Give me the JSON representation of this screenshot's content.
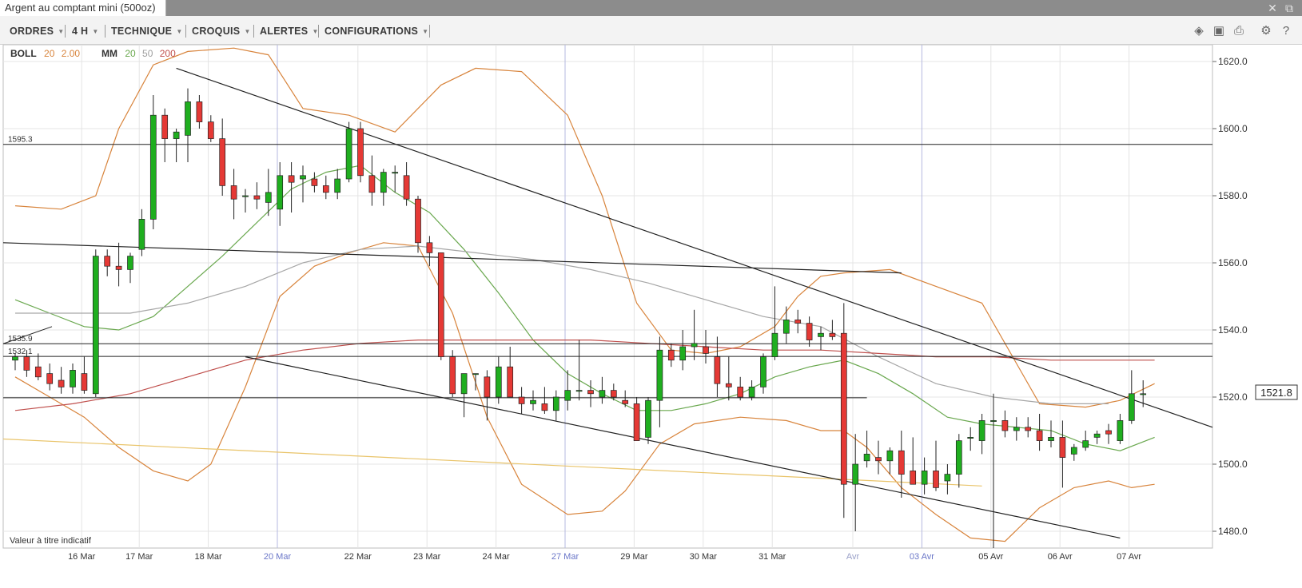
{
  "window": {
    "tab_title": "Argent au comptant mini (500oz)"
  },
  "toolbar": {
    "menus": [
      "ORDRES",
      "4 H",
      "TECHNIQUE",
      "CROQUIS",
      "ALERTES",
      "CONFIGURATIONS"
    ],
    "right_icons": [
      "layers-icon",
      "image-icon",
      "print-icon",
      "gear-icon",
      "help-icon"
    ]
  },
  "indicators": {
    "boll": {
      "label": "BOLL",
      "p1": "20",
      "p2": "2.00"
    },
    "mm": {
      "label": "MM",
      "p1": "20",
      "p2": "50",
      "p3": "200"
    }
  },
  "footer_note": "Valeur à titre indicatif",
  "colors": {
    "up": "#1fae1f",
    "down": "#e53935",
    "bollinger": "#d8843c",
    "mm20": "#6aa84f",
    "mm50": "#a6a6a6",
    "mm200": "#c0504d",
    "trendline": "#222222",
    "long_ma": "#e9c46a",
    "grid": "#e4e4e4",
    "day_separator": "#b4b8e0"
  },
  "chart_data": {
    "type": "candlestick",
    "timeframe": "4 H",
    "ylim": [
      1475,
      1625
    ],
    "y_ticks": [
      1480.0,
      1500.0,
      1520.0,
      1540.0,
      1560.0,
      1580.0,
      1600.0,
      1620.0
    ],
    "y_tick_labels": [
      "1480.0",
      "1500.0",
      "1520.0",
      "1540.0",
      "1560.0",
      "1580.0",
      "1600.0",
      "1620.0"
    ],
    "x_labels": [
      "16 Mar",
      "17 Mar",
      "18 Mar",
      "20 Mar",
      "22 Mar",
      "23 Mar",
      "24 Mar",
      "27 Mar",
      "29 Mar",
      "30 Mar",
      "31 Mar",
      "Avr",
      "03 Avr",
      "05 Avr",
      "06 Avr",
      "07 Avr"
    ],
    "current_price": "1521.8",
    "horizontal_levels": [
      {
        "label": "1595.3",
        "value": 1595.3
      },
      {
        "label": "1535.9",
        "value": 1535.9
      },
      {
        "label": "1532.1",
        "value": 1532.1
      }
    ],
    "candles": [
      [
        1531,
        1533,
        1528,
        1532
      ],
      [
        1532,
        1534,
        1526,
        1528
      ],
      [
        1529,
        1533,
        1525,
        1526
      ],
      [
        1527,
        1530,
        1522,
        1524
      ],
      [
        1525,
        1529,
        1521,
        1523
      ],
      [
        1523,
        1530,
        1521,
        1528
      ],
      [
        1527,
        1532,
        1521,
        1522
      ],
      [
        1521,
        1564,
        1520,
        1562
      ],
      [
        1562,
        1564,
        1556,
        1559
      ],
      [
        1559,
        1566,
        1553,
        1558
      ],
      [
        1558,
        1563,
        1554,
        1562
      ],
      [
        1564,
        1576,
        1562,
        1573
      ],
      [
        1573,
        1610,
        1570,
        1604
      ],
      [
        1604,
        1606,
        1590,
        1597
      ],
      [
        1597,
        1600,
        1590,
        1599
      ],
      [
        1598,
        1612,
        1590,
        1608
      ],
      [
        1608,
        1610,
        1600,
        1602
      ],
      [
        1602,
        1604,
        1596,
        1597
      ],
      [
        1597,
        1603,
        1580,
        1583
      ],
      [
        1583,
        1588,
        1573,
        1579
      ],
      [
        1580,
        1582,
        1575,
        1580
      ],
      [
        1580,
        1584,
        1576,
        1579
      ],
      [
        1578,
        1588,
        1574,
        1581
      ],
      [
        1576,
        1590,
        1571,
        1586
      ],
      [
        1586,
        1590,
        1575,
        1584
      ],
      [
        1585,
        1589,
        1578,
        1586
      ],
      [
        1585,
        1587,
        1581,
        1583
      ],
      [
        1583,
        1586,
        1579,
        1581
      ],
      [
        1581,
        1588,
        1579,
        1585
      ],
      [
        1585,
        1602,
        1584,
        1600
      ],
      [
        1600,
        1602,
        1584,
        1586
      ],
      [
        1586,
        1592,
        1577,
        1581
      ],
      [
        1581,
        1588,
        1577,
        1587
      ],
      [
        1587,
        1589,
        1581,
        1587
      ],
      [
        1586,
        1590,
        1577,
        1579
      ],
      [
        1579,
        1580,
        1563,
        1566
      ],
      [
        1566,
        1568,
        1559,
        1563
      ],
      [
        1563,
        1563,
        1531,
        1532
      ],
      [
        1532,
        1534,
        1520,
        1521
      ],
      [
        1521,
        1527,
        1514,
        1527
      ],
      [
        1527,
        1527,
        1522,
        1527
      ],
      [
        1526,
        1528,
        1513,
        1520
      ],
      [
        1520,
        1532,
        1518,
        1529
      ],
      [
        1529,
        1535,
        1520,
        1520
      ],
      [
        1520,
        1523,
        1515,
        1518
      ],
      [
        1518,
        1522,
        1516,
        1519
      ],
      [
        1518,
        1523,
        1515,
        1516
      ],
      [
        1516,
        1522,
        1513,
        1520
      ],
      [
        1519,
        1528,
        1516,
        1522
      ],
      [
        1522,
        1537,
        1519,
        1522
      ],
      [
        1522,
        1525,
        1517,
        1521
      ],
      [
        1520,
        1526,
        1518,
        1522
      ],
      [
        1522,
        1524,
        1519,
        1520
      ],
      [
        1519,
        1522,
        1517,
        1518
      ],
      [
        1518,
        1520,
        1507,
        1507
      ],
      [
        1508,
        1520,
        1506,
        1519
      ],
      [
        1519,
        1538,
        1511,
        1534
      ],
      [
        1534,
        1536,
        1529,
        1531
      ],
      [
        1531,
        1540,
        1528,
        1535
      ],
      [
        1535,
        1546,
        1531,
        1536
      ],
      [
        1535,
        1540,
        1530,
        1533
      ],
      [
        1532,
        1538,
        1520,
        1524
      ],
      [
        1524,
        1532,
        1519,
        1523
      ],
      [
        1523,
        1526,
        1519,
        1520
      ],
      [
        1520,
        1525,
        1519,
        1523
      ],
      [
        1523,
        1533,
        1521,
        1532
      ],
      [
        1532,
        1553,
        1531,
        1539
      ],
      [
        1539,
        1547,
        1536,
        1543
      ],
      [
        1543,
        1546,
        1539,
        1542
      ],
      [
        1542,
        1544,
        1535,
        1537
      ],
      [
        1538,
        1541,
        1534,
        1539
      ],
      [
        1539,
        1543,
        1537,
        1538
      ],
      [
        1539,
        1548,
        1484,
        1494
      ],
      [
        1494,
        1509,
        1480,
        1500
      ],
      [
        1501,
        1510,
        1499,
        1503
      ],
      [
        1502,
        1507,
        1497,
        1501
      ],
      [
        1501,
        1505,
        1497,
        1504
      ],
      [
        1504,
        1510,
        1490,
        1497
      ],
      [
        1498,
        1508,
        1495,
        1494
      ],
      [
        1494,
        1502,
        1491,
        1498
      ],
      [
        1498,
        1507,
        1492,
        1493
      ],
      [
        1495,
        1500,
        1491,
        1497
      ],
      [
        1497,
        1509,
        1493,
        1507
      ],
      [
        1508,
        1511,
        1504,
        1508
      ],
      [
        1507,
        1515,
        1503,
        1513
      ],
      [
        1513,
        1521,
        1475,
        1513
      ],
      [
        1513,
        1516,
        1508,
        1510
      ],
      [
        1510,
        1514,
        1507,
        1511
      ],
      [
        1511,
        1514,
        1508,
        1510
      ],
      [
        1510,
        1515,
        1504,
        1507
      ],
      [
        1507,
        1513,
        1505,
        1508
      ],
      [
        1508,
        1513,
        1493,
        1502
      ],
      [
        1503,
        1506,
        1501,
        1505
      ],
      [
        1505,
        1510,
        1504,
        1507
      ],
      [
        1508,
        1510,
        1506,
        1509
      ],
      [
        1510,
        1512,
        1506,
        1509
      ],
      [
        1507,
        1515,
        1506,
        1513
      ],
      [
        1513,
        1528,
        1512,
        1521
      ],
      [
        1521,
        1525,
        1517,
        1521
      ]
    ],
    "series": [
      {
        "name": "BOLL upper",
        "points": [
          [
            0,
            1577
          ],
          [
            4,
            1576
          ],
          [
            7,
            1580
          ],
          [
            9,
            1600
          ],
          [
            12,
            1619
          ],
          [
            15,
            1623
          ],
          [
            19,
            1624
          ],
          [
            22,
            1622
          ],
          [
            25,
            1606
          ],
          [
            29,
            1604
          ],
          [
            33,
            1599
          ],
          [
            37,
            1613
          ],
          [
            40,
            1618
          ],
          [
            44,
            1617
          ],
          [
            48,
            1604
          ],
          [
            51,
            1580
          ],
          [
            54,
            1548
          ],
          [
            57,
            1534
          ],
          [
            60,
            1533
          ],
          [
            63,
            1535
          ],
          [
            66,
            1541
          ],
          [
            68,
            1550
          ],
          [
            70,
            1556
          ],
          [
            72,
            1557
          ],
          [
            76,
            1558
          ],
          [
            80,
            1553
          ],
          [
            84,
            1548
          ],
          [
            87,
            1530
          ],
          [
            89,
            1518
          ],
          [
            93,
            1517
          ],
          [
            96,
            1519
          ],
          [
            99,
            1524
          ]
        ]
      },
      {
        "name": "BOLL lower",
        "points": [
          [
            0,
            1526
          ],
          [
            3,
            1520
          ],
          [
            6,
            1514
          ],
          [
            9,
            1505
          ],
          [
            12,
            1498
          ],
          [
            15,
            1495
          ],
          [
            17,
            1500
          ],
          [
            20,
            1523
          ],
          [
            23,
            1550
          ],
          [
            26,
            1559
          ],
          [
            29,
            1563
          ],
          [
            32,
            1566
          ],
          [
            35,
            1565
          ],
          [
            38,
            1545
          ],
          [
            41,
            1514
          ],
          [
            44,
            1494
          ],
          [
            48,
            1485
          ],
          [
            51,
            1486
          ],
          [
            53,
            1492
          ],
          [
            56,
            1506
          ],
          [
            59,
            1512
          ],
          [
            63,
            1514
          ],
          [
            67,
            1513
          ],
          [
            70,
            1510
          ],
          [
            72,
            1510
          ],
          [
            74,
            1505
          ],
          [
            77,
            1493
          ],
          [
            80,
            1485
          ],
          [
            83,
            1478
          ],
          [
            86,
            1477
          ],
          [
            89,
            1487
          ],
          [
            92,
            1493
          ],
          [
            95,
            1495
          ],
          [
            97,
            1493
          ],
          [
            99,
            1494
          ]
        ]
      },
      {
        "name": "MM 20",
        "points": [
          [
            0,
            1549
          ],
          [
            3,
            1545
          ],
          [
            6,
            1541
          ],
          [
            9,
            1540
          ],
          [
            12,
            1544
          ],
          [
            15,
            1553
          ],
          [
            18,
            1562
          ],
          [
            21,
            1572
          ],
          [
            24,
            1582
          ],
          [
            27,
            1587
          ],
          [
            30,
            1589
          ],
          [
            33,
            1581
          ],
          [
            36,
            1575
          ],
          [
            39,
            1564
          ],
          [
            42,
            1551
          ],
          [
            45,
            1537
          ],
          [
            48,
            1527
          ],
          [
            51,
            1521
          ],
          [
            54,
            1516
          ],
          [
            57,
            1516
          ],
          [
            60,
            1518
          ],
          [
            63,
            1521
          ],
          [
            66,
            1526
          ],
          [
            69,
            1529
          ],
          [
            72,
            1531
          ],
          [
            75,
            1527
          ],
          [
            78,
            1521
          ],
          [
            81,
            1514
          ],
          [
            84,
            1512
          ],
          [
            87,
            1511
          ],
          [
            90,
            1510
          ],
          [
            93,
            1506
          ],
          [
            96,
            1504
          ],
          [
            99,
            1508
          ]
        ]
      },
      {
        "name": "MM 50",
        "points": [
          [
            0,
            1545
          ],
          [
            5,
            1545
          ],
          [
            10,
            1545
          ],
          [
            15,
            1548
          ],
          [
            20,
            1553
          ],
          [
            25,
            1560
          ],
          [
            30,
            1564
          ],
          [
            35,
            1565
          ],
          [
            40,
            1563
          ],
          [
            45,
            1561
          ],
          [
            50,
            1558
          ],
          [
            55,
            1554
          ],
          [
            60,
            1549
          ],
          [
            65,
            1544
          ],
          [
            70,
            1541
          ],
          [
            75,
            1532
          ],
          [
            80,
            1524
          ],
          [
            85,
            1520
          ],
          [
            90,
            1518
          ],
          [
            95,
            1518
          ]
        ]
      },
      {
        "name": "MM 200",
        "points": [
          [
            0,
            1516
          ],
          [
            5,
            1518
          ],
          [
            10,
            1521
          ],
          [
            15,
            1526
          ],
          [
            20,
            1531
          ],
          [
            25,
            1534
          ],
          [
            30,
            1536
          ],
          [
            35,
            1537
          ],
          [
            40,
            1537
          ],
          [
            45,
            1537
          ],
          [
            50,
            1537
          ],
          [
            55,
            1536
          ],
          [
            60,
            1535
          ],
          [
            65,
            1534
          ],
          [
            70,
            1534
          ],
          [
            75,
            1533
          ],
          [
            80,
            1532
          ],
          [
            85,
            1532
          ],
          [
            90,
            1531
          ],
          [
            95,
            1531
          ],
          [
            99,
            1531
          ]
        ]
      }
    ]
  }
}
